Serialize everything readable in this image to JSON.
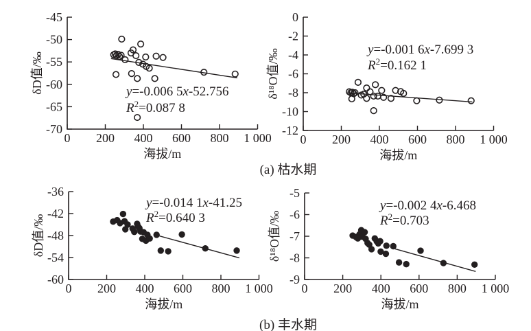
{
  "figure": {
    "captions": [
      {
        "label": "(a) 枯水期"
      },
      {
        "label": "(b) 丰水期"
      }
    ]
  },
  "chart_data": [
    {
      "id": "a-dD",
      "type": "scatter",
      "season": "枯水期",
      "marker": "open",
      "xlabel": "海拔/m",
      "ylabel": "δD值/‰",
      "xlim": [
        0,
        1000
      ],
      "ylim": [
        -70,
        -45
      ],
      "xticks": [
        0,
        200,
        400,
        600,
        800,
        1000
      ],
      "xtick_labels": [
        "0",
        "200",
        "400",
        "600",
        "800",
        "1 000"
      ],
      "yticks": [
        -45,
        -50,
        -55,
        -60,
        -65,
        -70
      ],
      "equation": {
        "a": "-0.006 5",
        "b": "-52.756",
        "r2": "0.087 8"
      },
      "trendline": {
        "x1": 230,
        "y1": -54.25,
        "x2": 893,
        "y2": -58.56
      },
      "points": [
        [
          286,
          -49.9
        ],
        [
          386,
          -51.0
        ],
        [
          346,
          -52.3
        ],
        [
          335,
          -53.0
        ],
        [
          361,
          -53.6
        ],
        [
          244,
          -53.4
        ],
        [
          252,
          -53.2
        ],
        [
          258,
          -53.6
        ],
        [
          267,
          -53.3
        ],
        [
          275,
          -53.8
        ],
        [
          283,
          -53.5
        ],
        [
          304,
          -54.5
        ],
        [
          376,
          -55.1
        ],
        [
          397,
          -55.5
        ],
        [
          415,
          -56.0
        ],
        [
          431,
          -56.4
        ],
        [
          412,
          -53.9
        ],
        [
          467,
          -53.7
        ],
        [
          503,
          -54.0
        ],
        [
          256,
          -57.8
        ],
        [
          338,
          -57.6
        ],
        [
          368,
          -58.7
        ],
        [
          460,
          -58.7
        ],
        [
          718,
          -57.3
        ],
        [
          882,
          -57.7
        ],
        [
          368,
          -67.4
        ]
      ]
    },
    {
      "id": "a-d18O",
      "type": "scatter",
      "season": "枯水期",
      "marker": "open",
      "xlabel": "海拔/m",
      "ylabel": "δ¹⁸O值/‰",
      "xlim": [
        0,
        1000
      ],
      "ylim": [
        -12,
        0
      ],
      "xticks": [
        0,
        200,
        400,
        600,
        800,
        1000
      ],
      "xtick_labels": [
        "0",
        "200",
        "400",
        "600",
        "800",
        "1 000"
      ],
      "yticks": [
        0,
        -2,
        -4,
        -6,
        -8,
        -10,
        -12
      ],
      "equation": {
        "a": "-0.001 6",
        "b": "-7.699 3",
        "r2": "0.162 1"
      },
      "trendline": {
        "x1": 235,
        "y1": -8.02,
        "x2": 888,
        "y2": -8.98
      },
      "points": [
        [
          242,
          -7.9
        ],
        [
          250,
          -8.0
        ],
        [
          258,
          -7.95
        ],
        [
          265,
          -8.1
        ],
        [
          272,
          -8.0
        ],
        [
          255,
          -8.65
        ],
        [
          288,
          -6.9
        ],
        [
          305,
          -8.25
        ],
        [
          318,
          -8.15
        ],
        [
          333,
          -7.5
        ],
        [
          351,
          -7.9
        ],
        [
          333,
          -8.6
        ],
        [
          370,
          -8.36
        ],
        [
          370,
          -9.9
        ],
        [
          379,
          -7.15
        ],
        [
          392,
          -8.36
        ],
        [
          412,
          -7.76
        ],
        [
          422,
          -8.49
        ],
        [
          461,
          -8.6
        ],
        [
          485,
          -7.76
        ],
        [
          512,
          -7.88
        ],
        [
          527,
          -8.07
        ],
        [
          596,
          -8.85
        ],
        [
          715,
          -8.78
        ],
        [
          882,
          -8.85
        ]
      ]
    },
    {
      "id": "b-dD",
      "type": "scatter",
      "season": "丰水期",
      "marker": "filled",
      "xlabel": "海拔/m",
      "ylabel": "δD值/‰",
      "xlim": [
        0,
        1000
      ],
      "ylim": [
        -60,
        -36
      ],
      "xticks": [
        0,
        200,
        400,
        600,
        800,
        1000
      ],
      "xtick_labels": [
        "0",
        "200",
        "400",
        "600",
        "800",
        "1 000"
      ],
      "yticks": [
        -36,
        -42,
        -48,
        -54,
        -60
      ],
      "equation": {
        "a": "-0.014 1",
        "b": "-41.25",
        "r2": "0.640 3"
      },
      "trendline": {
        "x1": 455,
        "y1": -47.8,
        "x2": 897,
        "y2": -54.1
      },
      "points": [
        [
          286,
          -42.1
        ],
        [
          234,
          -44.2
        ],
        [
          255,
          -43.8
        ],
        [
          270,
          -44.6
        ],
        [
          294,
          -44.1
        ],
        [
          310,
          -45.0
        ],
        [
          298,
          -46.3
        ],
        [
          336,
          -46.1
        ],
        [
          360,
          -44.8
        ],
        [
          366,
          -45.6
        ],
        [
          378,
          -46.9
        ],
        [
          345,
          -47.0
        ],
        [
          372,
          -46.0
        ],
        [
          394,
          -47.1
        ],
        [
          414,
          -47.8
        ],
        [
          387,
          -48.9
        ],
        [
          406,
          -49.4
        ],
        [
          426,
          -48.8
        ],
        [
          462,
          -47.8
        ],
        [
          484,
          -52.1
        ],
        [
          523,
          -52.3
        ],
        [
          595,
          -47.7
        ],
        [
          718,
          -51.5
        ],
        [
          883,
          -52.1
        ]
      ]
    },
    {
      "id": "b-d18O",
      "type": "scatter",
      "season": "丰水期",
      "marker": "filled",
      "xlabel": "海拔/m",
      "ylabel": "δ¹⁸O值/‰",
      "xlim": [
        0,
        1000
      ],
      "ylim": [
        -9,
        -5
      ],
      "xticks": [
        0,
        200,
        400,
        600,
        800,
        1000
      ],
      "xtick_labels": [
        "0",
        "200",
        "400",
        "600",
        "800",
        "1 000"
      ],
      "yticks": [
        -5,
        -6,
        -7,
        -8,
        -9
      ],
      "equation": {
        "a": "-0.002 4",
        "b": "-6.468",
        "r2": "0.703"
      },
      "trendline": {
        "x1": 473,
        "y1": -7.58,
        "x2": 897,
        "y2": -8.63
      },
      "points": [
        [
          252,
          -6.97
        ],
        [
          270,
          -7.04
        ],
        [
          288,
          -6.91
        ],
        [
          297,
          -6.72
        ],
        [
          279,
          -7.1
        ],
        [
          303,
          -7.02
        ],
        [
          315,
          -6.81
        ],
        [
          320,
          -7.12
        ],
        [
          330,
          -7.31
        ],
        [
          339,
          -7.39
        ],
        [
          351,
          -7.6
        ],
        [
          368,
          -7.1
        ],
        [
          378,
          -7.23
        ],
        [
          386,
          -7.33
        ],
        [
          396,
          -7.23
        ],
        [
          399,
          -7.71
        ],
        [
          429,
          -7.44
        ],
        [
          426,
          -7.81
        ],
        [
          465,
          -7.46
        ],
        [
          495,
          -8.21
        ],
        [
          533,
          -8.29
        ],
        [
          608,
          -7.67
        ],
        [
          728,
          -8.24
        ],
        [
          891,
          -8.31
        ]
      ]
    }
  ]
}
